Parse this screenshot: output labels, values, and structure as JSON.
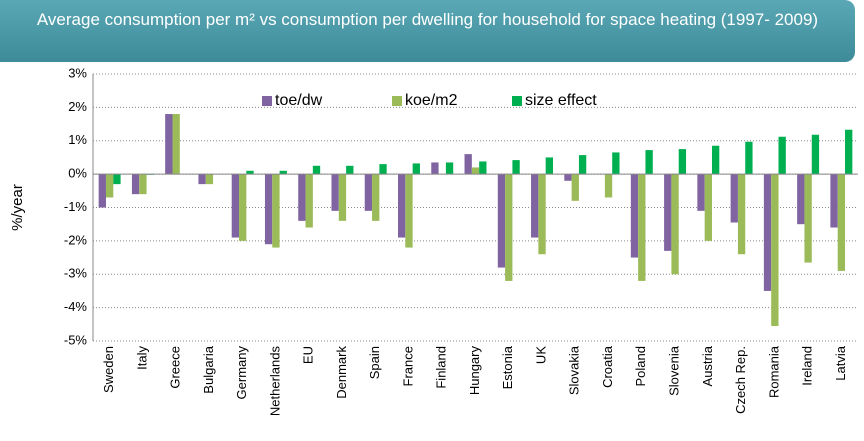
{
  "chart_data": {
    "type": "bar",
    "title": "Average consumption per m² vs consumption per dwelling for household for space heating (1997- 2009)",
    "y_label": "%/year",
    "categories": [
      "Sweden",
      "Italy",
      "Greece",
      "Bulgaria",
      "Germany",
      "Netherlands",
      "EU",
      "Denmark",
      "Spain",
      "France",
      "Finland",
      "Hungary",
      "Estonia",
      "UK",
      "Slovakia",
      "Croatia",
      "Poland",
      "Slovenia",
      "Austria",
      "Czech Rep.",
      "Romania",
      "Ireland",
      "Latvia"
    ],
    "series": [
      {
        "name": "toe/dw",
        "color": "#8064a2",
        "values": [
          -1.0,
          -0.6,
          1.8,
          -0.3,
          -1.9,
          -2.1,
          -1.4,
          -1.1,
          -1.1,
          -1.9,
          0.35,
          0.6,
          -2.8,
          -1.9,
          -0.2,
          0.0,
          -2.5,
          -2.3,
          -1.1,
          -1.45,
          -3.5,
          -1.5,
          -1.6
        ]
      },
      {
        "name": "koe/m2",
        "color": "#9bbb59",
        "values": [
          -0.7,
          -0.6,
          1.8,
          -0.3,
          -2.0,
          -2.2,
          -1.6,
          -1.4,
          -1.4,
          -2.2,
          0.0,
          0.2,
          -3.2,
          -2.4,
          -0.8,
          -0.7,
          -3.2,
          -3.0,
          -2.0,
          -2.4,
          -4.55,
          -2.65,
          -2.9
        ]
      },
      {
        "name": "size effect",
        "color": "#00b050",
        "values": [
          -0.3,
          -0.02,
          0.0,
          0.0,
          0.1,
          0.1,
          0.25,
          0.25,
          0.3,
          0.32,
          0.35,
          0.38,
          0.42,
          0.5,
          0.57,
          0.65,
          0.72,
          0.75,
          0.85,
          0.97,
          1.12,
          1.18,
          1.33
        ]
      }
    ],
    "ylim": [
      -5,
      3
    ],
    "yticks": [
      {
        "value": -5,
        "label": "-5%"
      },
      {
        "value": -4,
        "label": "-4%"
      },
      {
        "value": -3,
        "label": "-3%"
      },
      {
        "value": -2,
        "label": "-2%"
      },
      {
        "value": -1,
        "label": "-1%"
      },
      {
        "value": 0,
        "label": "0%"
      },
      {
        "value": 1,
        "label": "1%"
      },
      {
        "value": 2,
        "label": "2%"
      },
      {
        "value": 3,
        "label": "3%"
      }
    ],
    "grid": true,
    "legend": "top"
  }
}
